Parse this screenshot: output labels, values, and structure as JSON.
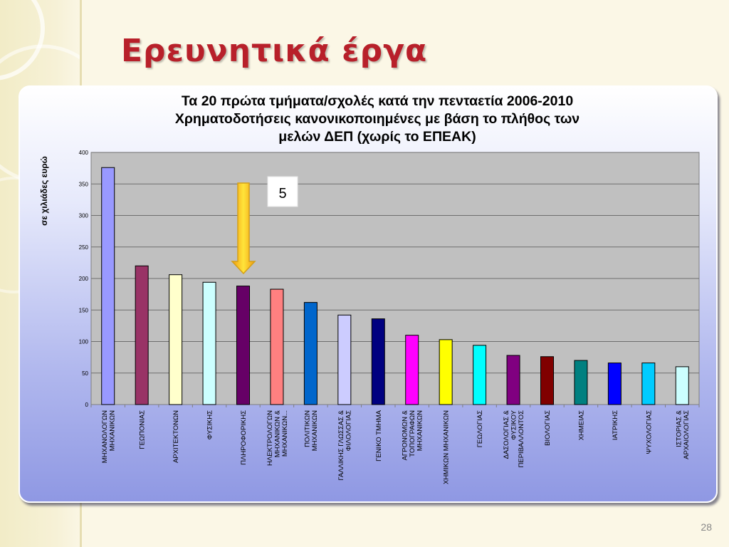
{
  "slide": {
    "title": "Ερευνητικά έργα",
    "page_number": "28"
  },
  "callout": {
    "label": "5"
  },
  "chart_data": {
    "type": "bar",
    "title": [
      "Τα 20 πρώτα τμήματα/σχολές κατά την πενταετία 2006-2010",
      "Χρηματοδοτήσεις κανονικοποιημένες με βάση το πλήθος των",
      "μελών ΔΕΠ (χωρίς το ΕΠΕΑΚ)"
    ],
    "xlabel": "",
    "ylabel": "σε χιλιάδες ευρώ",
    "ylim": [
      0,
      400
    ],
    "yticks": [
      0,
      50,
      100,
      150,
      200,
      250,
      300,
      350,
      400
    ],
    "grid": true,
    "legend": "none",
    "categories": [
      [
        "ΜΗΧΑΝΟΛΟΓΩΝ",
        "ΜΗΧΑΝΙΚΩΝ"
      ],
      [
        "ΓΕΩΠΟΝΙΑΣ"
      ],
      [
        "ΑΡΧΙΤΕΚΤΟΝΩΝ"
      ],
      [
        "ΦΥΣΙΚΗΣ"
      ],
      [
        "ΠΛΗΡΟΦΟΡΙΚΗΣ"
      ],
      [
        "ΗΛΕΚΤΡΟΛΟΓΩΝ",
        "ΜΗΧΑΝΙΚΩΝ &",
        "ΜΗΧΑΝΙΚΩΝ..."
      ],
      [
        "ΠΟΛΙΤΙΚΩΝ",
        "ΜΗΧΑΝΙΚΩΝ"
      ],
      [
        "ΓΑΛΛΙΚΗΣ ΓΛΩΣΣΑΣ &",
        "ΦΙΛΟΛΟΓΙΑΣ"
      ],
      [
        "ΓΕΝΙΚΟ ΤΜΗΜΑ"
      ],
      [
        "ΑΓΡΟΝΟΜΩΝ &",
        "ΤΟΠΟΓΡΑΦΩΝ",
        "ΜΗΧΑΝΙΚΩΝ"
      ],
      [
        "ΧΗΜΙΚΩΝ ΜΗΧΑΝΙΚΩΝ"
      ],
      [
        "ΓΕΩΛΟΓΙΑΣ"
      ],
      [
        "ΔΑΣΟΛΟΓΙΑΣ &",
        "ΦΥΣΙΚΟΥ",
        "ΠΕΡΙΒΑΛΛΟΝΤΟΣ"
      ],
      [
        "ΒΙΟΛΟΓΙΑΣ"
      ],
      [
        "ΧΗΜΕΙΑΣ"
      ],
      [
        "ΙΑΤΡΙΚΗΣ"
      ],
      [
        "ΨΥΧΟΛΟΓΙΑΣ"
      ],
      [
        "ΙΣΤΟΡΙΑΣ &",
        "ΑΡΧΑΙΟΛΟΓΙΑΣ"
      ]
    ],
    "values": [
      376,
      220,
      206,
      194,
      188,
      183,
      162,
      142,
      136,
      110,
      103,
      94,
      78,
      76,
      70,
      66,
      66,
      60
    ],
    "colors": [
      "#9999ff",
      "#993366",
      "#ffffcc",
      "#ccffff",
      "#660066",
      "#ff8080",
      "#0066cc",
      "#ccccff",
      "#000080",
      "#ff00ff",
      "#ffff00",
      "#00ffff",
      "#800080",
      "#800000",
      "#008080",
      "#0000ff",
      "#00ccff",
      "#ccffff"
    ],
    "highlighted_index": 4
  }
}
